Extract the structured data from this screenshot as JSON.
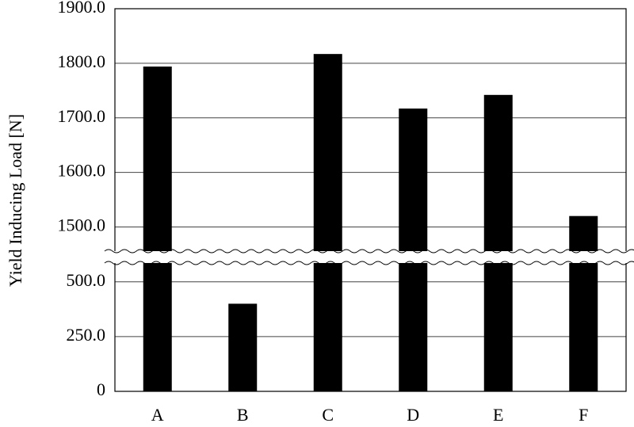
{
  "chart_data": {
    "type": "bar",
    "y_label": "Yield Inducing Load [N]",
    "categories": [
      "A",
      "B",
      "C",
      "D",
      "E",
      "F"
    ],
    "values": [
      1794,
      400,
      1817,
      1717,
      1742,
      1520
    ],
    "color": "#000000",
    "ylim": [
      0,
      1900
    ],
    "axis_break": [
      575,
      1460
    ],
    "yticks": [
      0,
      {
        "value": 250,
        "label": "250.0"
      },
      {
        "value": 500,
        "label": "500.0"
      },
      {
        "value": 1500,
        "label": "1500.0"
      },
      {
        "value": 1600,
        "label": "1600.0"
      },
      {
        "value": 1700,
        "label": "1700.0"
      },
      {
        "value": 1800,
        "label": "1800.0"
      },
      {
        "value": 1900,
        "label": "1900.0"
      }
    ],
    "grid": true
  }
}
